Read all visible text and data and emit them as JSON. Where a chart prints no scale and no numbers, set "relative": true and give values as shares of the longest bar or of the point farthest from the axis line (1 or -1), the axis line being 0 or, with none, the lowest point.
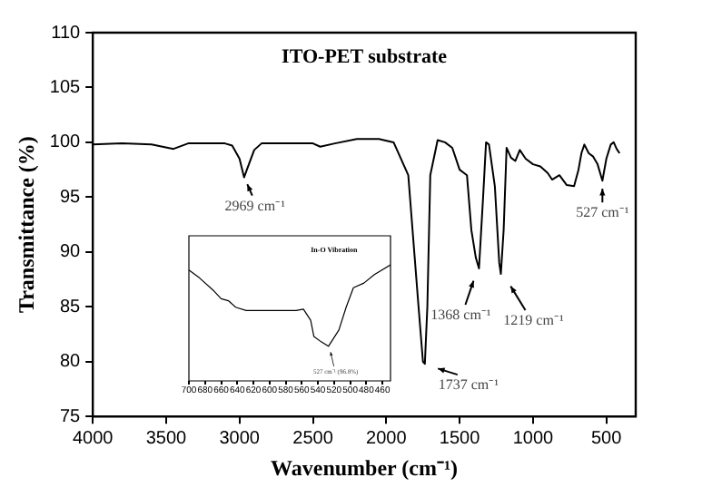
{
  "chart_data": [
    {
      "type": "line",
      "title": "ITO-PET substrate",
      "xlabel": "Wavenumber (cm⁻¹)",
      "ylabel": "Transmittance (%)",
      "color": "#000000",
      "x": [
        4000,
        3800,
        3600,
        3450,
        3350,
        3100,
        3050,
        3000,
        2969,
        2950,
        2900,
        2850,
        2500,
        2450,
        2350,
        2200,
        2050,
        1950,
        1850,
        1780,
        1750,
        1737,
        1720,
        1700,
        1650,
        1600,
        1550,
        1500,
        1450,
        1420,
        1390,
        1368,
        1340,
        1320,
        1300,
        1260,
        1230,
        1219,
        1200,
        1180,
        1150,
        1120,
        1090,
        1050,
        1000,
        950,
        900,
        870,
        820,
        770,
        720,
        690,
        670,
        650,
        620,
        590,
        560,
        527,
        500,
        470,
        450,
        430,
        410
      ],
      "values": [
        99.8,
        99.9,
        99.8,
        99.4,
        99.9,
        99.9,
        99.7,
        98.5,
        96.8,
        97.5,
        99.3,
        99.9,
        99.9,
        99.6,
        99.9,
        100.3,
        100.3,
        100.0,
        97,
        85,
        80.0,
        79.8,
        85,
        97,
        100.2,
        100.0,
        99.5,
        97.5,
        97,
        92,
        89.5,
        88.5,
        95,
        100,
        99.8,
        96,
        89,
        88,
        92,
        99.5,
        98.6,
        98.3,
        99.3,
        98.5,
        98.0,
        97.8,
        97.2,
        96.6,
        97.0,
        96.1,
        96.0,
        97.5,
        99.0,
        99.8,
        99.0,
        98.7,
        98.0,
        96.5,
        98.5,
        99.8,
        100.0,
        99.4,
        99.0
      ],
      "xlim": [
        4000,
        300
      ],
      "xticks": [
        4000,
        3500,
        3000,
        2500,
        2000,
        1500,
        1000,
        500
      ],
      "ylim": [
        75,
        110
      ],
      "yticks": [
        75,
        80,
        85,
        90,
        95,
        100,
        105,
        110
      ],
      "grid": false,
      "legend": false,
      "marker": "none",
      "line_style": "solid",
      "annotations": [
        {
          "text": "2969 cm⁻¹",
          "x": 2969,
          "y": 96.8
        },
        {
          "text": "1737 cm⁻¹",
          "x": 1737,
          "y": 79.8
        },
        {
          "text": "1368 cm⁻¹",
          "x": 1368,
          "y": 88.5
        },
        {
          "text": "1219 cm⁻¹",
          "x": 1219,
          "y": 88.0
        },
        {
          "text": "527 cm⁻¹",
          "x": 527,
          "y": 96.5
        }
      ]
    },
    {
      "type": "line",
      "relative": true,
      "tick_labels": "x",
      "color": "#000000",
      "x": [
        700,
        687,
        669,
        660,
        651,
        642,
        629,
        567,
        558,
        549,
        545,
        536,
        527,
        514,
        505,
        496,
        483,
        470,
        450
      ],
      "values": [
        0.955,
        0.888,
        0.775,
        0.708,
        0.691,
        0.635,
        0.607,
        0.607,
        0.618,
        0.522,
        0.382,
        0.337,
        0.298,
        0.438,
        0.635,
        0.803,
        0.843,
        0.916,
        1
      ],
      "xlim": [
        700,
        450
      ],
      "xticks": [
        700,
        680,
        660,
        640,
        620,
        600,
        580,
        560,
        540,
        520,
        500,
        480,
        460
      ],
      "grid": false,
      "legend": false,
      "marker": "none",
      "line_style": "solid",
      "annotations": [
        "In-O Vibration",
        {
          "text": "527 cm⁻¹ (96.8%)",
          "x": 527,
          "y": 0.298
        }
      ]
    }
  ]
}
